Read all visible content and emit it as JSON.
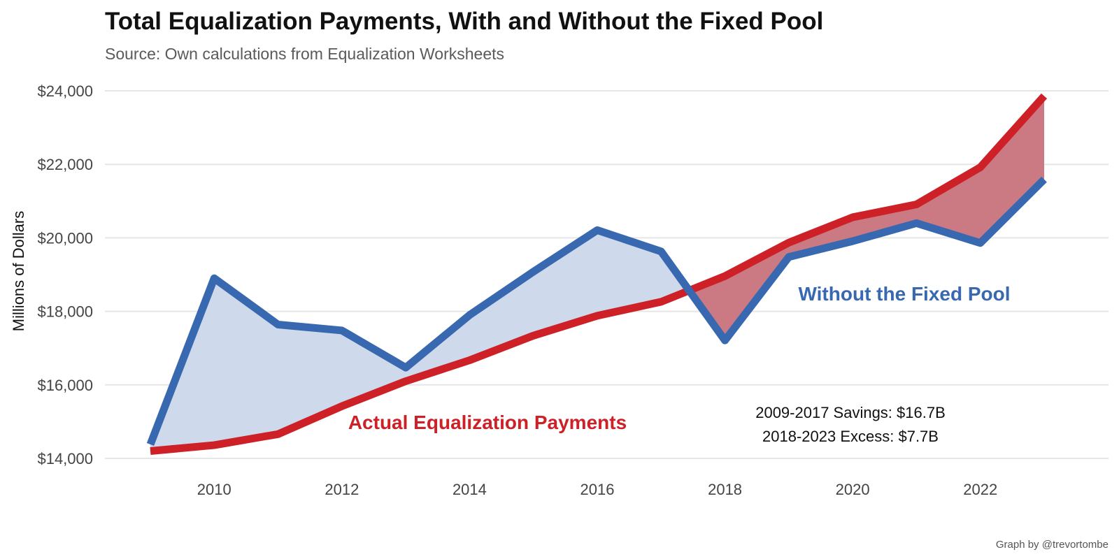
{
  "chart_data": {
    "type": "line",
    "title": "Total Equalization Payments, With and Without the Fixed Pool",
    "subtitle": "Source: Own calculations from Equalization Worksheets",
    "xlabel": "",
    "ylabel": "Millions of Dollars",
    "x": [
      2009,
      2010,
      2011,
      2012,
      2013,
      2014,
      2015,
      2016,
      2017,
      2018,
      2019,
      2020,
      2021,
      2022,
      2023
    ],
    "xlim": [
      2009,
      2023
    ],
    "ylim": [
      14000,
      24000
    ],
    "x_ticks": [
      2010,
      2012,
      2014,
      2016,
      2018,
      2020,
      2022
    ],
    "x_tick_labels": [
      "2010",
      "2012",
      "2014",
      "2016",
      "2018",
      "2020",
      "2022"
    ],
    "y_ticks": [
      14000,
      16000,
      18000,
      20000,
      22000,
      24000
    ],
    "y_tick_labels": [
      "$14,000",
      "$16,000",
      "$18,000",
      "$20,000",
      "$22,000",
      "$24,000"
    ],
    "grid": true,
    "legend": "none",
    "series": [
      {
        "name": "Actual Equalization Payments",
        "color": "#cd2027",
        "values": [
          14200,
          14360,
          14660,
          15420,
          16100,
          16670,
          17340,
          17880,
          18260,
          18960,
          19870,
          20560,
          20910,
          21920,
          23860
        ]
      },
      {
        "name": "Without the Fixed Pool",
        "color": "#3868b0",
        "values": [
          14380,
          18900,
          17640,
          17480,
          16470,
          17900,
          19080,
          20210,
          19630,
          17210,
          19480,
          19910,
          20400,
          19860,
          21590
        ]
      }
    ],
    "fill_colors": {
      "savings": "#cbd8ea",
      "excess": "#c8737c"
    },
    "annotations": [
      "2009-2017 Savings: $16.7B",
      "2018-2023 Excess: $7.7B"
    ],
    "caption": "Graph by @trevortombe"
  }
}
